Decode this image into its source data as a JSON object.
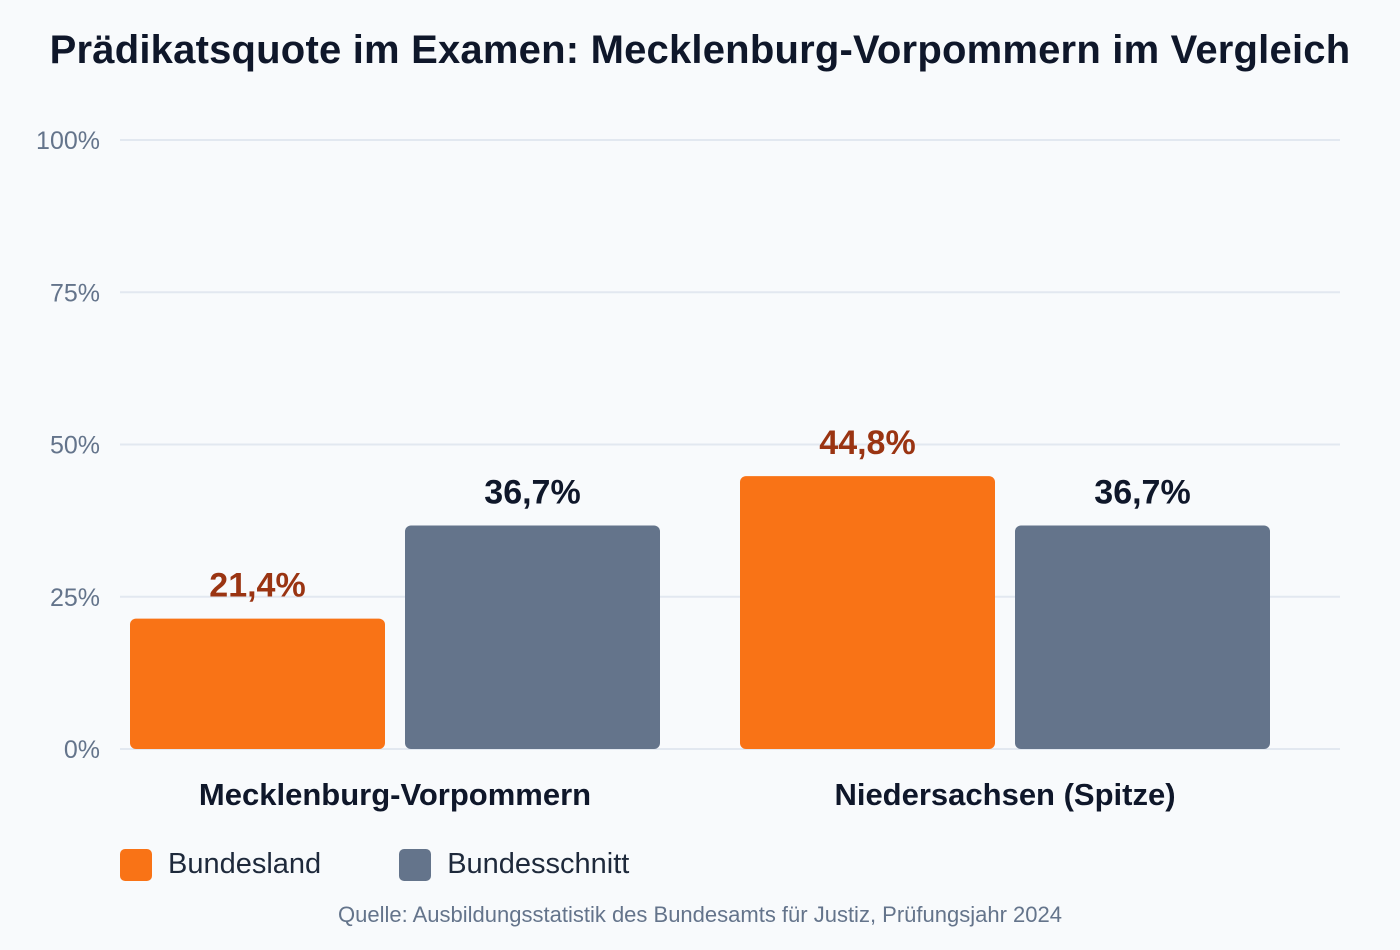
{
  "chart_data": {
    "type": "bar",
    "title": "Prädikatsquote im Examen: Mecklenburg-Vorpommern im Vergleich",
    "categories": [
      "Mecklenburg-Vorpommern",
      "Niedersachsen (Spitze)"
    ],
    "series": [
      {
        "name": "Bundesland",
        "values": [
          21.4,
          44.8
        ],
        "labels": [
          "21,4%",
          "44,8%"
        ],
        "color": "#f97316",
        "label_color": "#9a3412"
      },
      {
        "name": "Bundesschnitt",
        "values": [
          36.7,
          36.7
        ],
        "labels": [
          "36,7%",
          "36,7%"
        ],
        "color": "#64748b",
        "label_color": "#0f172a"
      }
    ],
    "ylim": [
      0,
      100
    ],
    "yticks": [
      0,
      25,
      50,
      75,
      100
    ],
    "ytick_labels": [
      "0%",
      "25%",
      "50%",
      "75%",
      "100%"
    ],
    "grid": true,
    "legend_position": "bottom-left",
    "source": "Quelle: Ausbildungsstatistik des Bundesamts für Justiz, Prüfungsjahr 2024"
  }
}
